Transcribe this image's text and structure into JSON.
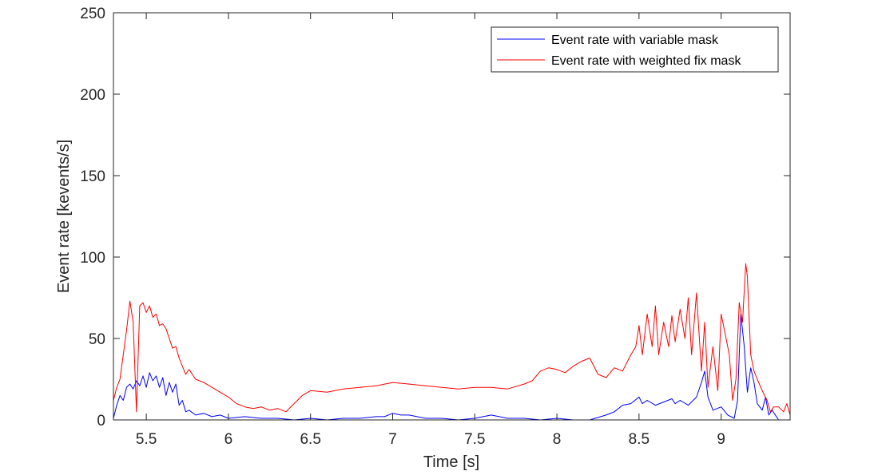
{
  "chart_data": {
    "type": "line",
    "title": "",
    "xlabel": "Time [s]",
    "ylabel": "Event rate [kevents/s]",
    "xlim": [
      5.3,
      9.42
    ],
    "ylim": [
      0,
      250
    ],
    "xticks": [
      5.5,
      6,
      6.5,
      7,
      7.5,
      8,
      8.5,
      9
    ],
    "xtick_labels": [
      "5.5",
      "6",
      "6.5",
      "7",
      "7.5",
      "8",
      "8.5",
      "9"
    ],
    "yticks": [
      0,
      50,
      100,
      150,
      200,
      250
    ],
    "ytick_labels": [
      "0",
      "50",
      "100",
      "150",
      "200",
      "250"
    ],
    "grid": false,
    "legend_position": "top-right",
    "series": [
      {
        "name": "Event rate with variable mask",
        "color": "#0000ff",
        "x": [
          5.3,
          5.32,
          5.34,
          5.36,
          5.38,
          5.4,
          5.42,
          5.44,
          5.46,
          5.48,
          5.5,
          5.52,
          5.54,
          5.56,
          5.58,
          5.6,
          5.62,
          5.64,
          5.66,
          5.68,
          5.7,
          5.72,
          5.74,
          5.76,
          5.8,
          5.85,
          5.9,
          5.95,
          6.0,
          6.1,
          6.2,
          6.3,
          6.4,
          6.5,
          6.6,
          6.7,
          6.8,
          6.9,
          6.95,
          7.0,
          7.05,
          7.1,
          7.2,
          7.3,
          7.4,
          7.5,
          7.6,
          7.7,
          7.8,
          7.9,
          8.0,
          8.1,
          8.2,
          8.3,
          8.35,
          8.4,
          8.45,
          8.5,
          8.52,
          8.55,
          8.6,
          8.65,
          8.7,
          8.72,
          8.75,
          8.8,
          8.85,
          8.88,
          8.9,
          8.92,
          8.95,
          9.0,
          9.04,
          9.08,
          9.1,
          9.11,
          9.12,
          9.14,
          9.16,
          9.18,
          9.2,
          9.22,
          9.25,
          9.27,
          9.29,
          9.31,
          9.35,
          9.4,
          9.42
        ],
        "y": [
          1,
          9,
          15,
          12,
          20,
          22,
          19,
          24,
          21,
          27,
          20,
          29,
          24,
          27,
          20,
          26,
          15,
          23,
          17,
          22,
          9,
          12,
          5,
          6,
          3,
          4,
          2,
          3,
          1,
          2,
          1,
          1,
          0,
          1,
          0,
          1,
          1,
          2,
          2,
          4,
          3,
          3,
          1,
          1,
          0,
          1,
          3,
          1,
          1,
          0,
          1,
          0,
          0,
          3,
          5,
          9,
          10,
          14,
          10,
          12,
          9,
          11,
          13,
          10,
          12,
          9,
          14,
          23,
          30,
          14,
          6,
          8,
          3,
          1,
          12,
          40,
          65,
          46,
          17,
          32,
          23,
          10,
          6,
          14,
          3,
          6,
          0,
          0,
          0
        ]
      },
      {
        "name": "Event rate with weighted fix mask",
        "color": "#ff0000",
        "x": [
          5.3,
          5.32,
          5.34,
          5.36,
          5.38,
          5.4,
          5.42,
          5.44,
          5.46,
          5.48,
          5.5,
          5.52,
          5.54,
          5.56,
          5.58,
          5.6,
          5.62,
          5.64,
          5.66,
          5.68,
          5.7,
          5.72,
          5.74,
          5.76,
          5.8,
          5.85,
          5.9,
          5.95,
          6.0,
          6.05,
          6.1,
          6.15,
          6.2,
          6.25,
          6.3,
          6.35,
          6.4,
          6.45,
          6.5,
          6.6,
          6.7,
          6.8,
          6.9,
          7.0,
          7.1,
          7.2,
          7.3,
          7.4,
          7.5,
          7.6,
          7.7,
          7.8,
          7.85,
          7.9,
          7.95,
          8.0,
          8.05,
          8.1,
          8.15,
          8.2,
          8.25,
          8.3,
          8.35,
          8.4,
          8.45,
          8.48,
          8.5,
          8.52,
          8.55,
          8.58,
          8.6,
          8.62,
          8.65,
          8.68,
          8.7,
          8.72,
          8.75,
          8.78,
          8.8,
          8.82,
          8.85,
          8.88,
          8.9,
          8.92,
          8.95,
          8.98,
          9.0,
          9.02,
          9.05,
          9.07,
          9.09,
          9.11,
          9.13,
          9.15,
          9.16,
          9.18,
          9.2,
          9.22,
          9.25,
          9.28,
          9.3,
          9.32,
          9.35,
          9.38,
          9.4,
          9.42
        ],
        "y": [
          12,
          20,
          25,
          40,
          55,
          73,
          60,
          5,
          70,
          72,
          66,
          70,
          63,
          65,
          58,
          59,
          56,
          50,
          44,
          45,
          38,
          33,
          28,
          31,
          25,
          23,
          20,
          17,
          14,
          10,
          8,
          7,
          8,
          6,
          7,
          5,
          10,
          15,
          18,
          17,
          19,
          20,
          21,
          23,
          22,
          21,
          20,
          19,
          20,
          20,
          19,
          22,
          24,
          30,
          32,
          31,
          29,
          33,
          36,
          38,
          28,
          26,
          32,
          30,
          40,
          45,
          58,
          40,
          65,
          45,
          70,
          40,
          60,
          45,
          64,
          48,
          68,
          50,
          75,
          40,
          78,
          30,
          60,
          20,
          45,
          18,
          65,
          55,
          40,
          12,
          25,
          72,
          60,
          96,
          88,
          40,
          30,
          25,
          18,
          12,
          5,
          8,
          8,
          5,
          10,
          3
        ]
      }
    ]
  }
}
